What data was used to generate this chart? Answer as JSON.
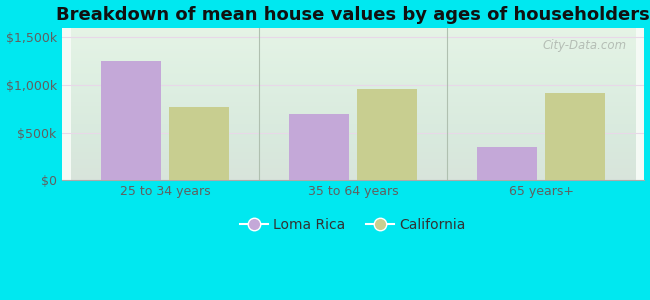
{
  "title": "Breakdown of mean house values by ages of householders",
  "categories": [
    "25 to 34 years",
    "35 to 64 years",
    "65 years+"
  ],
  "loma_rica": [
    1250000,
    700000,
    350000
  ],
  "california": [
    775000,
    960000,
    920000
  ],
  "loma_rica_color": "#c4a8d8",
  "california_color": "#c8ce90",
  "ylim": [
    0,
    1600000
  ],
  "yticks": [
    0,
    500000,
    1000000,
    1500000
  ],
  "ytick_labels": [
    "$0",
    "$500k",
    "$1,000k",
    "$1,500k"
  ],
  "background_outer": "#00e8f0",
  "background_inner_top": "#f5faf5",
  "background_inner_bottom": "#e8f4e8",
  "bar_width": 0.32,
  "legend_loma_rica": "Loma Rica",
  "legend_california": "California",
  "watermark": "City-Data.com",
  "title_fontsize": 13,
  "tick_fontsize": 9,
  "legend_fontsize": 10,
  "grid_color": "#e0ead0",
  "separator_color": "#b0c0b0"
}
